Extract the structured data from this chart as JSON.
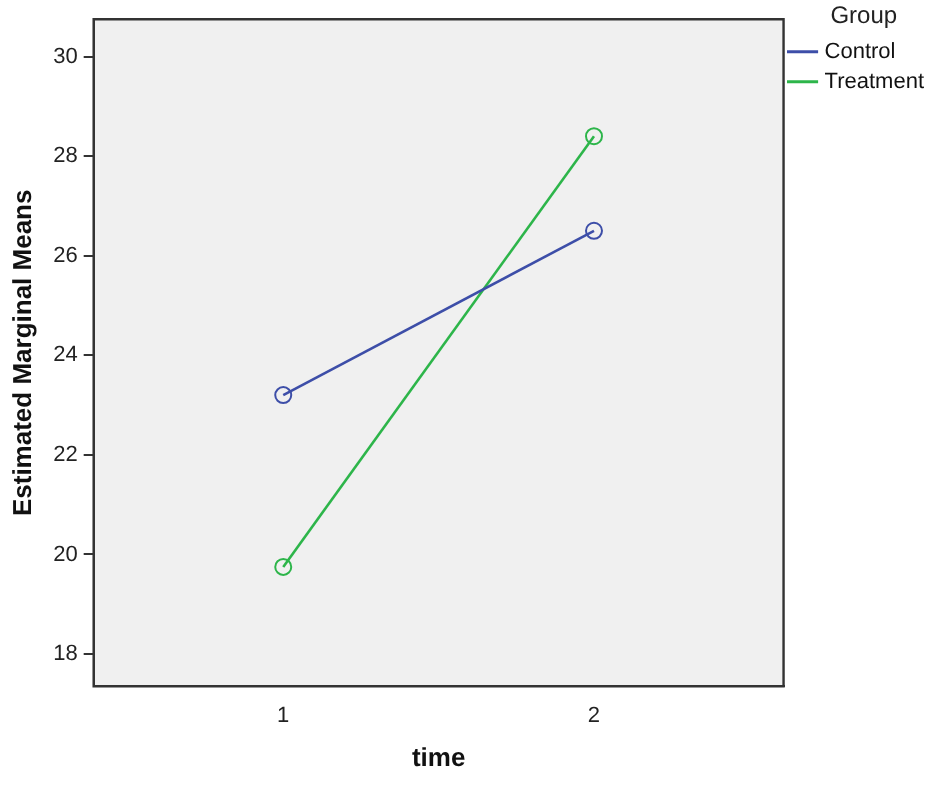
{
  "chart_data": {
    "type": "line",
    "xlabel": "time",
    "ylabel": "Estimated Marginal Means",
    "legend_title": "Group",
    "x": [
      1,
      2
    ],
    "xlim": [
      0.39,
      2.61
    ],
    "xticks": [
      1,
      2
    ],
    "ylim": [
      17.35,
      30.75
    ],
    "yticks": [
      18,
      20,
      22,
      24,
      26,
      28,
      30
    ],
    "grid": false,
    "legend": "top right",
    "marker": "circle",
    "series": [
      {
        "name": "Control",
        "color": "#3d4ea8",
        "values": [
          23.2,
          26.5
        ]
      },
      {
        "name": "Treatment",
        "color": "#2db54a",
        "values": [
          19.75,
          28.4
        ]
      }
    ]
  }
}
